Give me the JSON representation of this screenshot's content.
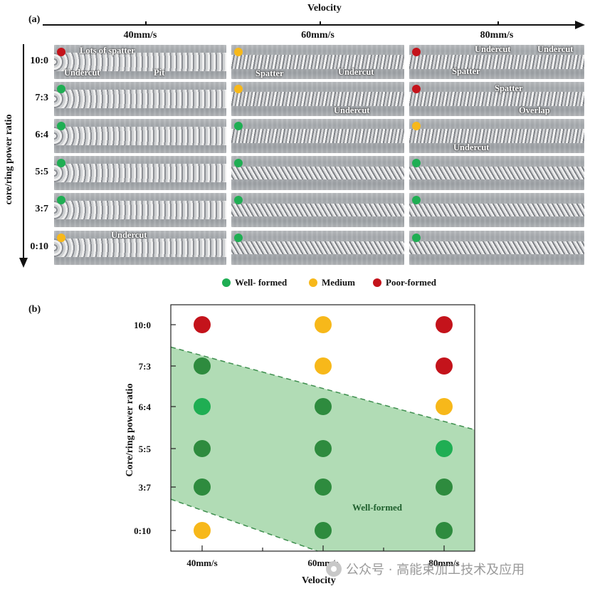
{
  "colors": {
    "well": "#1fae53",
    "medium": "#f7b81a",
    "poor": "#c4131b",
    "well_dark": "#2e8b3e",
    "region_fill": "#a8d8ad",
    "region_edge": "#3f8f4f"
  },
  "panel_a": {
    "label": "(a)",
    "top_axis_title": "Velocity",
    "side_axis_title": "core/ring power ratio",
    "columns": [
      "40mm/s",
      "60mm/s",
      "80mm/s"
    ],
    "rows": [
      "10:0",
      "7:3",
      "6:4",
      "5:5",
      "3:7",
      "0:10"
    ],
    "quality": [
      [
        "poor",
        "medium",
        "poor"
      ],
      [
        "well",
        "medium",
        "poor"
      ],
      [
        "well",
        "well",
        "medium"
      ],
      [
        "well",
        "well",
        "well"
      ],
      [
        "well",
        "well",
        "well"
      ],
      [
        "medium",
        "well",
        "well"
      ]
    ],
    "annotations": [
      {
        "row": 0,
        "col": 0,
        "items": [
          "Lots of spatter",
          "Undercut",
          "Pit"
        ]
      },
      {
        "row": 0,
        "col": 1,
        "items": [
          "Spatter",
          "Undercut"
        ]
      },
      {
        "row": 0,
        "col": 2,
        "items": [
          "Undercut",
          "Undercut",
          "Spatter"
        ]
      },
      {
        "row": 1,
        "col": 1,
        "items": [
          "Undercut"
        ]
      },
      {
        "row": 1,
        "col": 2,
        "items": [
          "Spatter",
          "Overlap"
        ]
      },
      {
        "row": 2,
        "col": 2,
        "items": [
          "Undercut"
        ]
      },
      {
        "row": 5,
        "col": 0,
        "items": [
          "Undercut"
        ]
      }
    ],
    "legend": [
      {
        "key": "well",
        "label": "Well- formed"
      },
      {
        "key": "medium",
        "label": "Medium"
      },
      {
        "key": "poor",
        "label": "Poor-formed"
      }
    ]
  },
  "chart_data": {
    "type": "scatter",
    "panel_label": "(b)",
    "xlabel": "Velocity",
    "ylabel": "Core/ring power ratio",
    "x_categories": [
      "40mm/s",
      "60mm/s",
      "80mm/s"
    ],
    "y_categories": [
      "10:0",
      "7:3",
      "6:4",
      "5:5",
      "3:7",
      "0:10"
    ],
    "points": [
      {
        "x": "40mm/s",
        "y": "10:0",
        "quality": "poor"
      },
      {
        "x": "60mm/s",
        "y": "10:0",
        "quality": "medium"
      },
      {
        "x": "80mm/s",
        "y": "10:0",
        "quality": "poor"
      },
      {
        "x": "40mm/s",
        "y": "7:3",
        "quality": "well"
      },
      {
        "x": "60mm/s",
        "y": "7:3",
        "quality": "medium"
      },
      {
        "x": "80mm/s",
        "y": "7:3",
        "quality": "poor"
      },
      {
        "x": "40mm/s",
        "y": "6:4",
        "quality": "well"
      },
      {
        "x": "60mm/s",
        "y": "6:4",
        "quality": "well"
      },
      {
        "x": "80mm/s",
        "y": "6:4",
        "quality": "medium"
      },
      {
        "x": "40mm/s",
        "y": "5:5",
        "quality": "well"
      },
      {
        "x": "60mm/s",
        "y": "5:5",
        "quality": "well"
      },
      {
        "x": "80mm/s",
        "y": "5:5",
        "quality": "well"
      },
      {
        "x": "40mm/s",
        "y": "3:7",
        "quality": "well"
      },
      {
        "x": "60mm/s",
        "y": "3:7",
        "quality": "well"
      },
      {
        "x": "80mm/s",
        "y": "3:7",
        "quality": "well"
      },
      {
        "x": "40mm/s",
        "y": "0:10",
        "quality": "medium"
      },
      {
        "x": "60mm/s",
        "y": "0:10",
        "quality": "well"
      },
      {
        "x": "80mm/s",
        "y": "0:10",
        "quality": "well"
      }
    ],
    "region": {
      "label": "Well-formed",
      "upper_boundary": [
        [
          -0.25,
          0.55
        ],
        [
          2.25,
          2.55
        ]
      ],
      "lower_boundary": [
        [
          -0.25,
          4.25
        ],
        [
          1.0,
          5.55
        ]
      ]
    },
    "grid": false
  },
  "watermark": {
    "text": "公众号 · 高能束加工技术及应用"
  }
}
